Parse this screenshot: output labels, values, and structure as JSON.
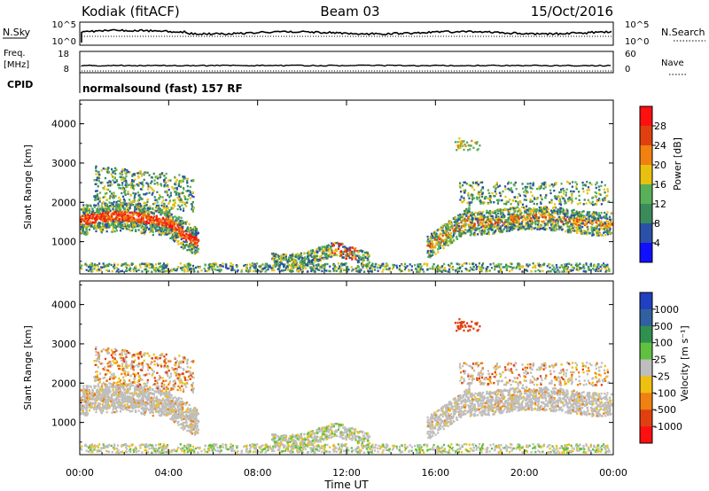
{
  "header": {
    "station": "Kodiak (fitACF)",
    "beam": "Beam 03",
    "date": "15/Oct/2016"
  },
  "top_panels": {
    "nsky_label": "N.Sky",
    "nsearch_label": "N.Search",
    "nsky_ticks": [
      "10^5",
      "10^0"
    ],
    "nsearch_ticks": [
      "10^5",
      "10^0"
    ],
    "freq_label_1": "Freq.",
    "freq_label_2": "[MHz]",
    "freq_ticks": [
      "18",
      "8"
    ],
    "nave_label": "Nave",
    "nave_ticks": [
      "60",
      "0"
    ],
    "cpid_label": "CPID",
    "cpid_value": "normalsound (fast) 157 RF"
  },
  "chart_data": [
    {
      "type": "heatmap",
      "panel": "power",
      "ylabel": "Slant Range [km]",
      "ylim": [
        180,
        4600
      ],
      "yticks": [
        "1000",
        "2000",
        "3000",
        "4000"
      ],
      "xlim": [
        "00:00",
        "24:00"
      ],
      "colorbar": {
        "label": "Power [dB]",
        "ticks": [
          "4",
          "8",
          "12",
          "16",
          "20",
          "24",
          "28"
        ],
        "colors": [
          "#1010ff",
          "#2a50a8",
          "#3a8a5a",
          "#58b058",
          "#e8c010",
          "#f08010",
          "#e04010",
          "#ff1010"
        ]
      },
      "echo_regions": [
        {
          "t_start": 0.0,
          "t_end": 5.5,
          "range_km": [
            1000,
            2900
          ],
          "power_db": "4-30"
        },
        {
          "t_start": 8.5,
          "t_end": 13.0,
          "range_km": [
            300,
            900
          ],
          "power_db": "4-28"
        },
        {
          "t_start": 15.5,
          "t_end": 24.0,
          "range_km": [
            700,
            2500
          ],
          "power_db": "4-24"
        }
      ]
    },
    {
      "type": "heatmap",
      "panel": "velocity",
      "ylabel": "Slant Range [km]",
      "ylim": [
        180,
        4600
      ],
      "yticks": [
        "1000",
        "2000",
        "3000",
        "4000"
      ],
      "xlim": [
        "00:00",
        "24:00"
      ],
      "xticks": [
        "00:00",
        "04:00",
        "08:00",
        "12:00",
        "16:00",
        "20:00",
        "00:00"
      ],
      "xlabel": "Time UT",
      "colorbar": {
        "label": "Velocity [m s⁻¹]",
        "ticks": [
          "1000",
          "500",
          "100",
          "25",
          "-25",
          "-100",
          "-500",
          "-1000"
        ],
        "colors": [
          "#2040c0",
          "#3060a0",
          "#309050",
          "#60c040",
          "#bebebe",
          "#f0c010",
          "#f08010",
          "#e04010",
          "#ff1010"
        ]
      }
    }
  ]
}
